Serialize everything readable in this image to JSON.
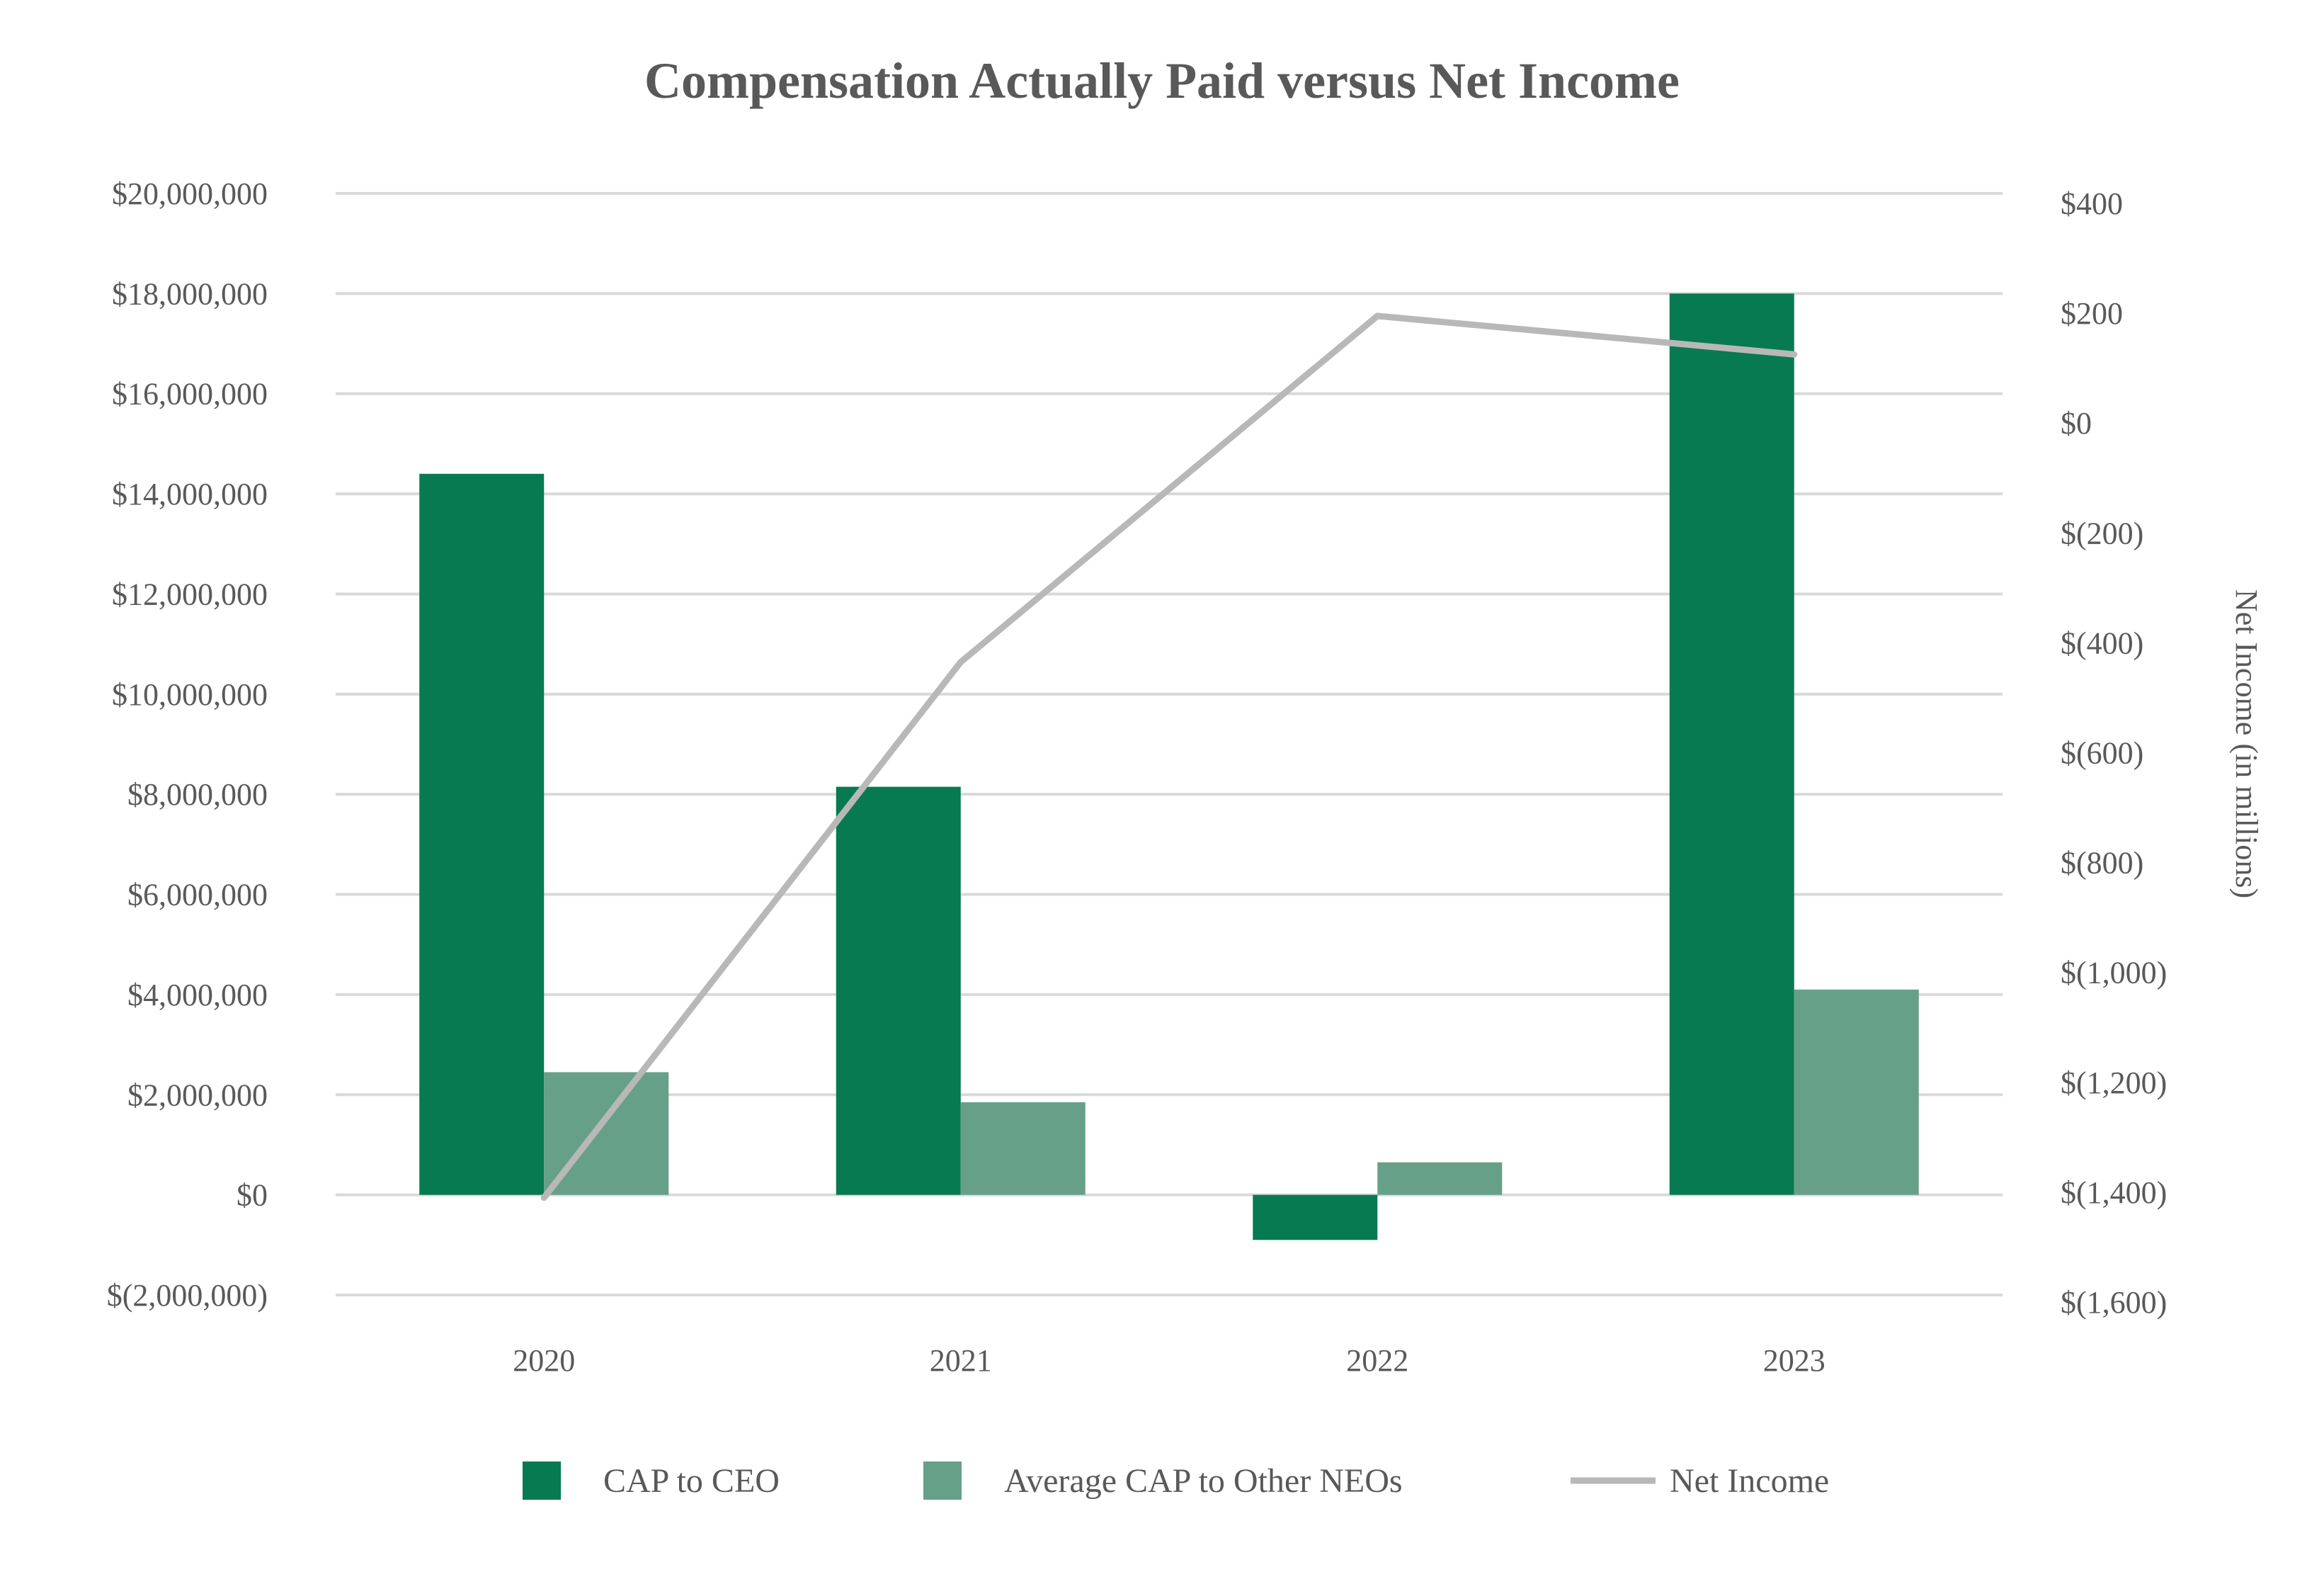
{
  "chart_data": {
    "type": "bar",
    "title": "Compensation Actually Paid versus Net Income",
    "categories": [
      "2020",
      "2021",
      "2022",
      "2023"
    ],
    "series": [
      {
        "name": "CAP to CEO",
        "kind": "bar",
        "axis": "left",
        "color": "#077a52",
        "values": [
          14400000,
          8150000,
          -900000,
          18000000
        ]
      },
      {
        "name": "Average CAP to Other NEOs",
        "kind": "bar",
        "axis": "left",
        "color": "#67a088",
        "values": [
          2450000,
          1850000,
          650000,
          4100000
        ]
      },
      {
        "name": "Net Income",
        "kind": "line",
        "axis": "right",
        "color": "#b8b8b8",
        "values": [
          -1410,
          -435,
          195,
          125
        ]
      }
    ],
    "left_axis": {
      "ylim": [
        -2000000,
        20000000
      ],
      "ticks": [
        20000000,
        18000000,
        16000000,
        14000000,
        12000000,
        10000000,
        8000000,
        6000000,
        4000000,
        2000000,
        0,
        -2000000
      ],
      "tick_labels": [
        "$20,000,000",
        "$18,000,000",
        "$16,000,000",
        "$14,000,000",
        "$12,000,000",
        "$10,000,000",
        "$8,000,000",
        "$6,000,000",
        "$4,000,000",
        "$2,000,000",
        "$0",
        "$(2,000,000)"
      ],
      "label": ""
    },
    "right_axis": {
      "ylim": [
        -1600,
        400
      ],
      "ticks": [
        400,
        200,
        0,
        -200,
        -400,
        -600,
        -800,
        -1000,
        -1200,
        -1400,
        -1600
      ],
      "tick_labels": [
        "$400",
        "$200",
        "$0",
        "$(200)",
        "$(400)",
        "$(600)",
        "$(800)",
        "$(1,000)",
        "$(1,200)",
        "$(1,400)",
        "$(1,600)"
      ],
      "label": "Net Income (in millions)"
    },
    "xlabel": "",
    "grid": true,
    "legend_position": "bottom-center"
  }
}
